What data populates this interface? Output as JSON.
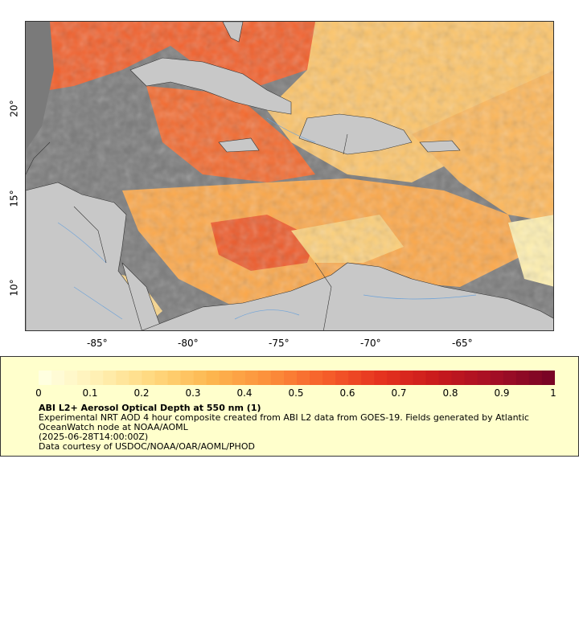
{
  "map": {
    "lon_ticks": [
      "-85°",
      "-80°",
      "-75°",
      "-70°",
      "-65°"
    ],
    "lat_ticks": [
      "20°",
      "15°",
      "10°"
    ],
    "colors": {
      "land": "#c8c8c8",
      "no_data": "#7a7a7a",
      "rivers": "#6fa3d8",
      "borders": "#333333"
    }
  },
  "legend": {
    "tick_labels": [
      "0",
      "0.1",
      "0.2",
      "0.3",
      "0.4",
      "0.5",
      "0.6",
      "0.7",
      "0.8",
      "0.9",
      "1"
    ],
    "title": "ABI L2+ Aerosol Optical Depth at 550 nm (1)",
    "line1": "Experimental NRT AOD 4 hour composite created from ABI L2 data from GOES-19. Fields generated by Atlantic",
    "line2": "OceanWatch node at NOAA/AOML",
    "line3": "(2025-06-28T14:00:00Z)",
    "line4": "Data courtesy of USDOC/NOAA/OAR/AOML/PHOD",
    "colormap": [
      "#ffffe0",
      "#ffefb0",
      "#ffd67a",
      "#fdb54e",
      "#fc8f3b",
      "#f65f2a",
      "#e5331f",
      "#c91a1c",
      "#a50f26",
      "#7a0425"
    ]
  }
}
